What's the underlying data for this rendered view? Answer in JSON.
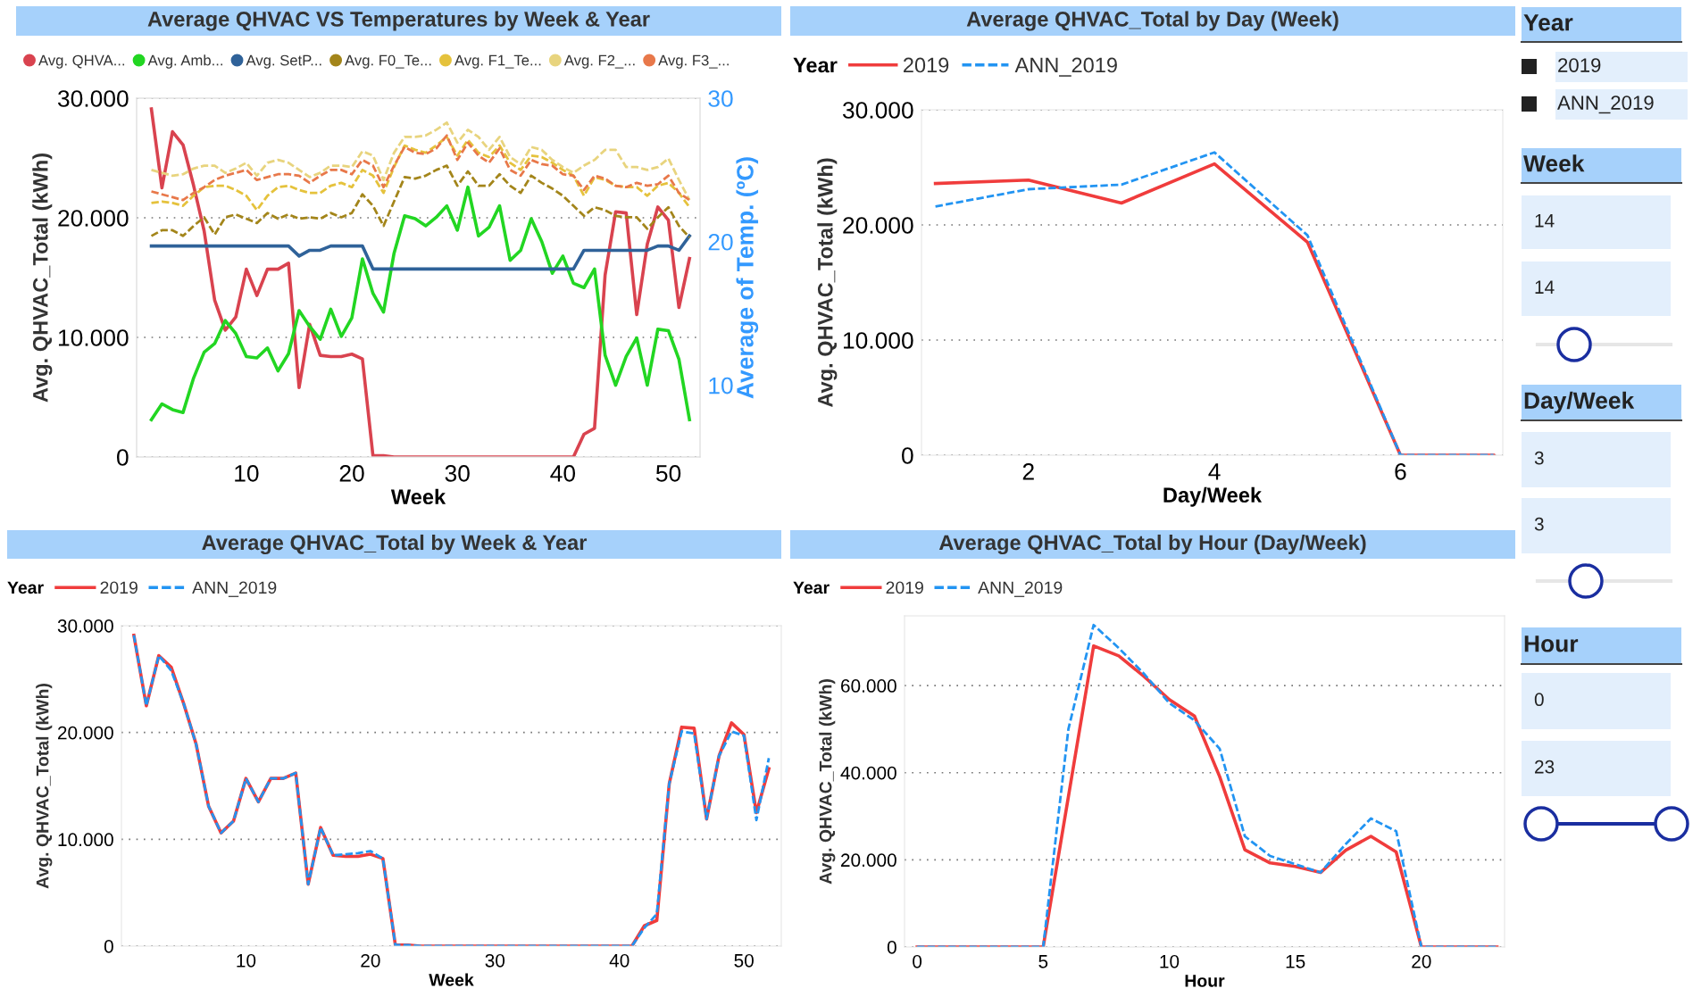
{
  "chart_data": [
    {
      "type": "line",
      "title": "Average QHVAC VS Temperatures by Week & Year",
      "xlabel": "Week",
      "ylabel": "Avg. QHVAC_Total (kWh)",
      "y2label": "Average of Temp. (ºC)",
      "x": [
        1,
        2,
        3,
        4,
        5,
        6,
        7,
        8,
        9,
        10,
        11,
        12,
        13,
        14,
        15,
        16,
        17,
        18,
        19,
        20,
        21,
        22,
        23,
        24,
        25,
        26,
        27,
        28,
        29,
        30,
        31,
        32,
        33,
        34,
        35,
        36,
        37,
        38,
        39,
        40,
        41,
        42,
        43,
        44,
        45,
        46,
        47,
        48,
        49,
        50,
        51,
        52
      ],
      "xlim": [
        -0.4,
        53
      ],
      "xticks": [
        10,
        20,
        30,
        40,
        50
      ],
      "ylim": [
        0,
        30000
      ],
      "yticks": [
        0,
        {
          "value": 10000,
          "label": "10.000"
        },
        {
          "value": 20000,
          "label": "20.000"
        },
        {
          "value": 30000,
          "label": "30.000"
        }
      ],
      "y2lim": [
        5,
        30
      ],
      "y2ticks": [
        10,
        20,
        30
      ],
      "grid": "y",
      "legend": "top",
      "series": [
        {
          "name": "Avg. QHVA...",
          "color": "#d9434f",
          "line_style": "solid",
          "values": [
            29100,
            22500,
            27200,
            26100,
            22700,
            18900,
            13100,
            10600,
            11700,
            15700,
            13500,
            15700,
            15700,
            16200,
            5800,
            11100,
            8500,
            8400,
            8400,
            8600,
            8200,
            100,
            100,
            0,
            0,
            0,
            0,
            0,
            0,
            0,
            0,
            0,
            0,
            0,
            0,
            0,
            0,
            0,
            0,
            0,
            0,
            1900,
            2400,
            15200,
            20500,
            20400,
            11900,
            17800,
            20900,
            19800,
            12500,
            16600
          ]
        },
        {
          "name": "Avg. Amb...",
          "color": "#22d622",
          "line_style": "solid",
          "axis": "y2",
          "values": [
            7.6,
            8.7,
            8.3,
            8.1,
            10.5,
            12.3,
            12.9,
            14.5,
            13.6,
            12.0,
            11.9,
            12.6,
            11.0,
            12.2,
            15.2,
            14.1,
            13.2,
            15.3,
            13.4,
            14.7,
            18.8,
            16.4,
            15.1,
            19.2,
            21.8,
            21.6,
            21.1,
            21.7,
            22.5,
            20.8,
            23.8,
            20.4,
            21.0,
            22.5,
            18.7,
            19.4,
            21.6,
            20.0,
            17.8,
            19.0,
            17.1,
            16.8,
            18.1,
            12.1,
            10.0,
            12.0,
            13.3,
            10.0,
            13.9,
            13.8,
            11.8,
            7.6
          ]
        },
        {
          "name": "Avg. SetP...",
          "color": "#2f6299",
          "line_style": "solid",
          "axis": "y2",
          "values": [
            19.7,
            19.7,
            19.7,
            19.7,
            19.7,
            19.7,
            19.7,
            19.7,
            19.7,
            19.7,
            19.7,
            19.7,
            19.7,
            19.7,
            19.0,
            19.4,
            19.4,
            19.7,
            19.7,
            19.7,
            19.7,
            18.1,
            18.1,
            18.1,
            18.1,
            18.1,
            18.1,
            18.1,
            18.1,
            18.1,
            18.1,
            18.1,
            18.1,
            18.1,
            18.1,
            18.1,
            18.1,
            18.1,
            18.1,
            18.1,
            18.1,
            19.4,
            19.4,
            19.4,
            19.4,
            19.4,
            19.4,
            19.4,
            19.7,
            19.7,
            19.4,
            20.4
          ]
        },
        {
          "name": "Avg. F0_Te...",
          "color": "#a3851a",
          "line_style": "dashed",
          "axis": "y2",
          "values": [
            20.4,
            20.8,
            20.8,
            20.4,
            21.1,
            21.7,
            20.5,
            21.7,
            21.9,
            21.6,
            21.3,
            22.0,
            21.6,
            21.9,
            21.6,
            21.7,
            21.6,
            22.0,
            21.7,
            22.0,
            23.3,
            22.5,
            21.1,
            22.8,
            24.5,
            24.4,
            24.6,
            25.0,
            25.3,
            23.9,
            24.9,
            23.9,
            23.9,
            24.7,
            23.9,
            23.4,
            24.6,
            24.1,
            23.7,
            23.2,
            22.5,
            21.8,
            22.4,
            22.2,
            21.8,
            21.7,
            21.7,
            20.9,
            21.7,
            22.4,
            21.1,
            20.3
          ]
        },
        {
          "name": "Avg. F1_Te...",
          "color": "#e5c23c",
          "line_style": "dashed",
          "axis": "y2",
          "values": [
            22.7,
            22.8,
            22.7,
            22.5,
            23.2,
            23.8,
            23.9,
            23.9,
            23.6,
            23.2,
            22.2,
            23.2,
            23.8,
            23.9,
            23.6,
            23.4,
            23.4,
            23.9,
            24.1,
            23.8,
            25.0,
            24.6,
            23.4,
            25.2,
            26.7,
            26.4,
            26.2,
            26.7,
            27.3,
            26.0,
            27.1,
            26.2,
            25.9,
            26.7,
            25.5,
            25.0,
            26.0,
            25.9,
            25.5,
            25.0,
            24.6,
            23.2,
            24.5,
            24.3,
            23.9,
            23.8,
            23.8,
            23.2,
            23.9,
            24.1,
            23.4,
            22.4
          ]
        },
        {
          "name": "Avg. F2_...",
          "color": "#e8d47e",
          "line_style": "dashed",
          "axis": "y2",
          "values": [
            25.0,
            24.8,
            24.6,
            24.7,
            25.1,
            25.3,
            25.3,
            24.8,
            25.1,
            25.5,
            24.6,
            25.5,
            25.7,
            25.5,
            25.0,
            24.5,
            24.8,
            25.3,
            25.3,
            25.2,
            26.3,
            26.0,
            24.3,
            26.2,
            27.3,
            27.3,
            27.4,
            27.8,
            28.3,
            26.9,
            27.8,
            27.3,
            26.4,
            27.3,
            25.9,
            25.4,
            26.6,
            26.4,
            25.7,
            25.2,
            24.8,
            25.3,
            25.7,
            26.4,
            26.4,
            25.2,
            25.2,
            25.0,
            25.2,
            25.8,
            24.3,
            22.9
          ]
        },
        {
          "name": "Avg. F3_...",
          "color": "#e8784a",
          "line_style": "dashed",
          "axis": "y2",
          "values": [
            23.5,
            23.3,
            23.1,
            22.9,
            23.4,
            23.8,
            24.3,
            24.6,
            24.8,
            25.0,
            24.3,
            24.5,
            24.7,
            24.7,
            24.6,
            24.1,
            24.6,
            25.0,
            25.0,
            24.7,
            25.7,
            25.3,
            23.8,
            25.3,
            26.6,
            26.2,
            26.1,
            26.5,
            27.4,
            25.7,
            26.9,
            26.0,
            25.5,
            26.5,
            25.0,
            24.6,
            25.7,
            25.4,
            25.3,
            24.7,
            24.6,
            23.6,
            24.6,
            24.4,
            23.9,
            23.8,
            24.1,
            23.9,
            24.0,
            24.6,
            23.4,
            22.9
          ]
        }
      ]
    },
    {
      "type": "line",
      "title": "Average QHVAC_Total by Day (Week)",
      "xlabel": "Day/Week",
      "ylabel": "Avg. QHVAC_Total (kWh)",
      "legend_title": "Year",
      "x": [
        1,
        2,
        3,
        4,
        5,
        6,
        7
      ],
      "xlim": [
        0.85,
        7.1
      ],
      "xticks": [
        2,
        4,
        6
      ],
      "ylim": [
        0,
        30000
      ],
      "yticks": [
        0,
        {
          "value": 10000,
          "label": "10.000"
        },
        {
          "value": 20000,
          "label": "20.000"
        },
        {
          "value": 30000,
          "label": "30.000"
        }
      ],
      "grid": "y",
      "legend": "top left",
      "series": [
        {
          "name": "2019",
          "color": "#f03c3c",
          "line_style": "solid",
          "values": [
            23600,
            23900,
            21900,
            25300,
            18500,
            0,
            0
          ]
        },
        {
          "name": "ANN_2019",
          "color": "#2294f2",
          "line_style": "dashed",
          "values": [
            21600,
            23100,
            23500,
            26300,
            19100,
            0,
            0
          ]
        }
      ]
    },
    {
      "type": "line",
      "title": "Average QHVAC_Total by Week & Year",
      "xlabel": "Week",
      "ylabel": "Avg. QHVAC_Total (kWh)",
      "legend_title": "Year",
      "x": [
        1,
        2,
        3,
        4,
        5,
        6,
        7,
        8,
        9,
        10,
        11,
        12,
        13,
        14,
        15,
        16,
        17,
        18,
        19,
        20,
        21,
        22,
        23,
        24,
        25,
        26,
        27,
        28,
        29,
        30,
        31,
        32,
        33,
        34,
        35,
        36,
        37,
        38,
        39,
        40,
        41,
        42,
        43,
        44,
        45,
        46,
        47,
        48,
        49,
        50,
        51,
        52
      ],
      "xlim": [
        0,
        53
      ],
      "xticks": [
        10,
        20,
        30,
        40,
        50
      ],
      "ylim": [
        0,
        30000
      ],
      "yticks": [
        0,
        {
          "value": 10000,
          "label": "10.000"
        },
        {
          "value": 20000,
          "label": "20.000"
        },
        {
          "value": 30000,
          "label": "30.000"
        }
      ],
      "grid": "y",
      "legend": "top left",
      "series": [
        {
          "name": "2019",
          "color": "#f03c3c",
          "line_style": "solid",
          "values": [
            29100,
            22500,
            27200,
            26100,
            22700,
            18900,
            13100,
            10600,
            11700,
            15700,
            13500,
            15700,
            15700,
            16200,
            5800,
            11100,
            8500,
            8400,
            8400,
            8600,
            8200,
            100,
            100,
            0,
            0,
            0,
            0,
            0,
            0,
            0,
            0,
            0,
            0,
            0,
            0,
            0,
            0,
            0,
            0,
            0,
            0,
            1900,
            2400,
            15200,
            20500,
            20400,
            11900,
            17800,
            20900,
            19800,
            12500,
            16600
          ]
        },
        {
          "name": "ANN_2019",
          "color": "#2294f2",
          "line_style": "dashed",
          "values": [
            29100,
            22500,
            27200,
            25800,
            22700,
            18900,
            13100,
            10600,
            11700,
            15700,
            13500,
            15700,
            15700,
            16200,
            5800,
            11100,
            8500,
            8600,
            8700,
            8900,
            8200,
            100,
            100,
            0,
            0,
            0,
            0,
            0,
            0,
            0,
            0,
            0,
            0,
            0,
            0,
            0,
            0,
            0,
            0,
            0,
            0,
            1700,
            3000,
            15200,
            20100,
            19900,
            11900,
            17800,
            20100,
            19700,
            11800,
            17600
          ]
        }
      ]
    },
    {
      "type": "line",
      "title": "Average QHVAC_Total by Hour (Day/Week)",
      "xlabel": "Hour",
      "ylabel": "Avg. QHVAC_Total (kWh)",
      "legend_title": "Year",
      "x": [
        0,
        1,
        2,
        3,
        4,
        5,
        6,
        7,
        8,
        9,
        10,
        11,
        12,
        13,
        14,
        15,
        16,
        17,
        18,
        19,
        20,
        21,
        22,
        23
      ],
      "xlim": [
        -0.5,
        23.3
      ],
      "xticks": [
        0,
        5,
        10,
        15,
        20
      ],
      "ylim": [
        0,
        76000
      ],
      "yticks": [
        0,
        {
          "value": 20000,
          "label": "20.000"
        },
        {
          "value": 40000,
          "label": "40.000"
        },
        {
          "value": 60000,
          "label": "60.000"
        }
      ],
      "grid": "y",
      "legend": "top left",
      "series": [
        {
          "name": "2019",
          "color": "#f03c3c",
          "line_style": "solid",
          "values": [
            0,
            0,
            0,
            0,
            0,
            0,
            34500,
            69100,
            66800,
            62100,
            56800,
            53000,
            39100,
            22300,
            19300,
            18500,
            17100,
            22200,
            25400,
            21800,
            0,
            0,
            0,
            0
          ]
        },
        {
          "name": "ANN_2019",
          "color": "#2294f2",
          "line_style": "dashed",
          "values": [
            0,
            0,
            0,
            0,
            0,
            0,
            50000,
            73900,
            68600,
            62700,
            56000,
            52000,
            45500,
            25400,
            20900,
            19000,
            17100,
            23600,
            29500,
            26600,
            0,
            0,
            0,
            0
          ]
        }
      ]
    },
    {
      "type": "other",
      "annotations": [
        "Year",
        "2019",
        "ANN_2019",
        "Week",
        "14",
        "14",
        "Day/Week",
        "3",
        "3",
        "Hour",
        "0",
        "23"
      ]
    }
  ]
}
